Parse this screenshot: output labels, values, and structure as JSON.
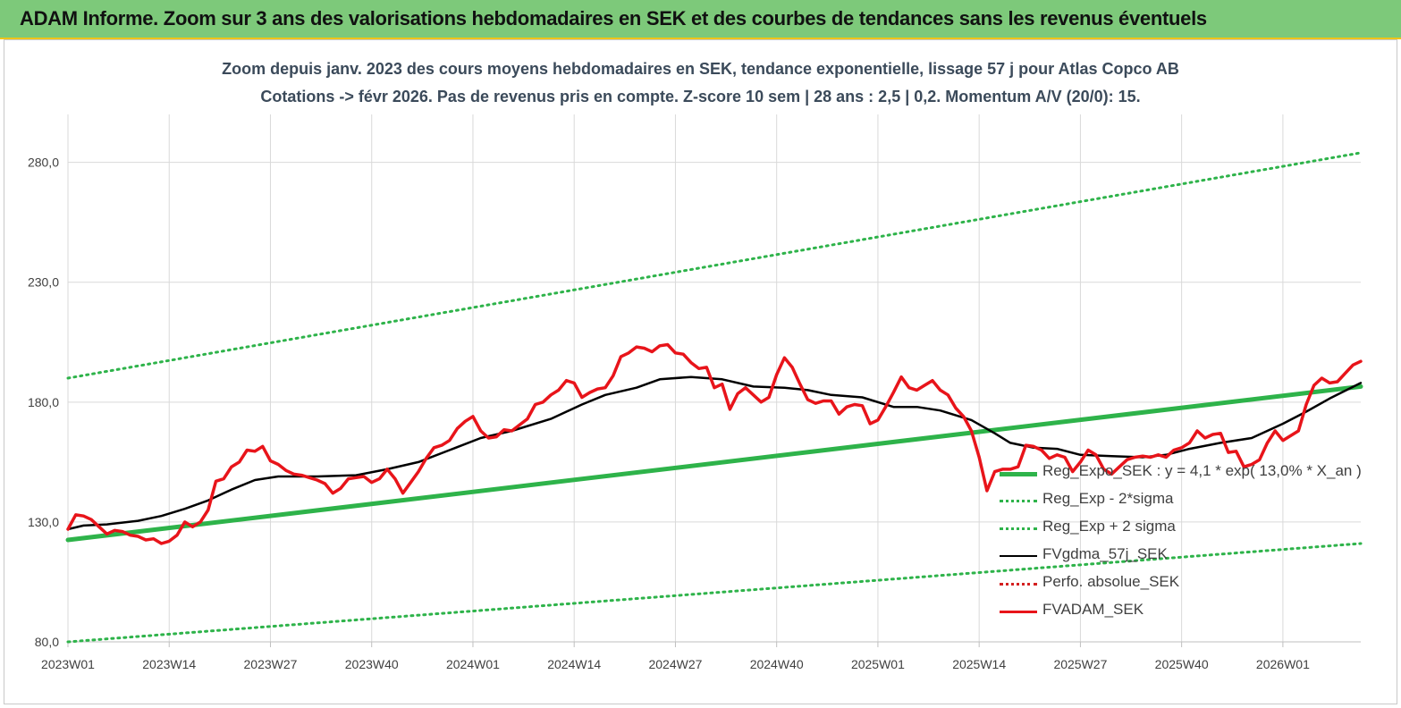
{
  "header": {
    "banner_title": "ADAM Informe. Zoom sur 3 ans des valorisations hebdomadaires en SEK et des courbes de tendances sans les revenus éventuels"
  },
  "chart_data": {
    "type": "line",
    "title": "Zoom depuis janv. 2023 des cours moyens hebdomadaires en SEK, tendance exponentielle, lissage 57 j pour Atlas Copco AB",
    "subtitle": "Cotations -> févr 2026.  Pas de revenus pris en compte. Z-score 10 sem  | 28 ans : 2,5  | 0,2. Momentum A/V (20/0): 15.",
    "xlabel": "",
    "ylabel": "",
    "ylim": [
      80,
      300
    ],
    "yticks": [
      80,
      130,
      180,
      230,
      280
    ],
    "ytick_labels": [
      "80,0",
      "130,0",
      "180,0",
      "230,0",
      "280,0"
    ],
    "xtick_labels": [
      "2023W01",
      "2023W14",
      "2023W27",
      "2023W40",
      "2024W01",
      "2024W14",
      "2024W27",
      "2024W40",
      "2025W01",
      "2025W14",
      "2025W27",
      "2025W40",
      "2026W01"
    ],
    "xtick_index": [
      0,
      13,
      26,
      39,
      52,
      65,
      78,
      91,
      104,
      117,
      130,
      143,
      156
    ],
    "n_weeks": 166,
    "grid": "horizontal and vertical",
    "legend_placement": "bottom-right",
    "series": [
      {
        "name": "Reg_Expo_SEK : y = 4,1 * exp( 13,0% *  X_an )",
        "style": "solid-thick",
        "color": "#2eb34a",
        "points": [
          [
            0,
            122.5
          ],
          [
            166,
            186.5
          ]
        ]
      },
      {
        "name": "Reg_Exp - 2*sigma",
        "style": "dotted",
        "color": "#2eb34a",
        "points": [
          [
            0,
            80
          ],
          [
            166,
            121
          ]
        ]
      },
      {
        "name": "Reg_Exp + 2 sigma",
        "style": "dotted",
        "color": "#2eb34a",
        "points": [
          [
            0,
            190
          ],
          [
            166,
            284
          ]
        ]
      },
      {
        "name": "FVgdma_57j_SEK",
        "style": "solid",
        "color": "#000000",
        "points": [
          [
            0,
            127
          ],
          [
            2,
            128.5
          ],
          [
            5,
            129
          ],
          [
            9,
            130.5
          ],
          [
            12,
            132.5
          ],
          [
            15,
            135.5
          ],
          [
            18,
            139
          ],
          [
            21,
            143.5
          ],
          [
            24,
            147.5
          ],
          [
            27,
            149
          ],
          [
            32,
            149
          ],
          [
            37,
            149.5
          ],
          [
            41,
            152
          ],
          [
            45,
            155
          ],
          [
            49,
            160
          ],
          [
            53,
            165
          ],
          [
            57,
            168
          ],
          [
            62,
            173
          ],
          [
            66,
            179
          ],
          [
            69,
            183
          ],
          [
            73,
            186
          ],
          [
            76,
            189.5
          ],
          [
            80,
            190.5
          ],
          [
            84,
            189.5
          ],
          [
            88,
            186.5
          ],
          [
            92,
            186
          ],
          [
            95,
            185
          ],
          [
            98,
            183
          ],
          [
            102,
            182
          ],
          [
            106,
            178
          ],
          [
            109,
            178
          ],
          [
            112,
            176.5
          ],
          [
            116,
            172.5
          ],
          [
            119,
            167
          ],
          [
            121,
            163
          ],
          [
            124,
            161
          ],
          [
            127,
            160.5
          ],
          [
            130,
            158
          ],
          [
            134,
            157.5
          ],
          [
            138,
            157
          ],
          [
            141,
            158
          ],
          [
            144,
            160.5
          ],
          [
            148,
            163
          ],
          [
            152,
            165
          ],
          [
            156,
            171
          ],
          [
            159,
            176
          ],
          [
            162,
            181.5
          ],
          [
            166,
            188
          ]
        ]
      },
      {
        "name": "Perfo. absolue_SEK",
        "style": "dotted",
        "color": "#d42020",
        "points": []
      },
      {
        "name": "FVADAM_SEK",
        "style": "solid-thick",
        "color": "#e8141a",
        "points": [
          [
            0,
            127
          ],
          [
            1,
            133
          ],
          [
            2,
            132.5
          ],
          [
            3,
            131
          ],
          [
            4,
            128
          ],
          [
            5,
            125
          ],
          [
            6,
            126.5
          ],
          [
            7,
            126
          ],
          [
            8,
            124.5
          ],
          [
            9,
            124
          ],
          [
            10,
            122.5
          ],
          [
            11,
            123
          ],
          [
            12,
            121
          ],
          [
            13,
            122
          ],
          [
            14,
            124.5
          ],
          [
            15,
            130
          ],
          [
            16,
            128
          ],
          [
            17,
            130
          ],
          [
            18,
            135
          ],
          [
            19,
            147
          ],
          [
            20,
            148
          ],
          [
            21,
            153
          ],
          [
            22,
            155
          ],
          [
            23,
            160
          ],
          [
            24,
            159.5
          ],
          [
            25,
            161.5
          ],
          [
            26,
            155.5
          ],
          [
            27,
            154
          ],
          [
            28,
            151.5
          ],
          [
            29,
            150
          ],
          [
            30,
            149.5
          ],
          [
            31,
            148.5
          ],
          [
            32,
            147.5
          ],
          [
            33,
            146
          ],
          [
            34,
            142
          ],
          [
            35,
            144
          ],
          [
            36,
            148
          ],
          [
            37,
            148.5
          ],
          [
            38,
            149
          ],
          [
            39,
            146.5
          ],
          [
            40,
            148
          ],
          [
            41,
            152
          ],
          [
            42,
            148
          ],
          [
            43,
            142
          ],
          [
            44,
            146.5
          ],
          [
            45,
            151
          ],
          [
            46,
            156.5
          ],
          [
            47,
            161
          ],
          [
            48,
            162
          ],
          [
            49,
            164
          ],
          [
            50,
            169
          ],
          [
            51,
            172
          ],
          [
            52,
            174
          ],
          [
            53,
            168
          ],
          [
            54,
            165
          ],
          [
            55,
            165.5
          ],
          [
            56,
            168.5
          ],
          [
            57,
            168
          ],
          [
            58,
            170.5
          ],
          [
            59,
            173
          ],
          [
            60,
            179
          ],
          [
            61,
            180
          ],
          [
            62,
            183
          ],
          [
            63,
            185
          ],
          [
            64,
            189
          ],
          [
            65,
            188
          ],
          [
            66,
            182
          ],
          [
            67,
            184
          ],
          [
            68,
            185.5
          ],
          [
            69,
            186
          ],
          [
            70,
            191
          ],
          [
            71,
            199
          ],
          [
            72,
            200.5
          ],
          [
            73,
            203
          ],
          [
            74,
            202.5
          ],
          [
            75,
            201
          ],
          [
            76,
            203.5
          ],
          [
            77,
            204
          ],
          [
            78,
            200.5
          ],
          [
            79,
            200
          ],
          [
            80,
            196.5
          ],
          [
            81,
            194
          ],
          [
            82,
            194.5
          ],
          [
            83,
            186
          ],
          [
            84,
            187.5
          ],
          [
            85,
            177
          ],
          [
            86,
            183.5
          ],
          [
            87,
            186
          ],
          [
            88,
            183
          ],
          [
            89,
            180
          ],
          [
            90,
            182
          ],
          [
            91,
            191.5
          ],
          [
            92,
            198.5
          ],
          [
            93,
            194.5
          ],
          [
            94,
            187.5
          ],
          [
            95,
            181
          ],
          [
            96,
            179.5
          ],
          [
            97,
            180.5
          ],
          [
            98,
            180.5
          ],
          [
            99,
            175
          ],
          [
            100,
            178
          ],
          [
            101,
            179
          ],
          [
            102,
            178.5
          ],
          [
            103,
            171
          ],
          [
            104,
            172.5
          ],
          [
            105,
            178
          ],
          [
            106,
            184
          ],
          [
            107,
            190.5
          ],
          [
            108,
            186
          ],
          [
            109,
            185
          ],
          [
            110,
            187
          ],
          [
            111,
            189
          ],
          [
            112,
            185
          ],
          [
            113,
            183
          ],
          [
            114,
            177.5
          ],
          [
            115,
            174
          ],
          [
            116,
            168
          ],
          [
            117,
            157
          ],
          [
            118,
            143
          ],
          [
            119,
            151
          ],
          [
            120,
            152
          ],
          [
            121,
            152
          ],
          [
            122,
            153
          ],
          [
            123,
            162
          ],
          [
            124,
            161.5
          ],
          [
            125,
            160
          ],
          [
            126,
            156.5
          ],
          [
            127,
            158
          ],
          [
            128,
            157
          ],
          [
            129,
            151
          ],
          [
            130,
            155
          ],
          [
            131,
            160
          ],
          [
            132,
            158
          ],
          [
            133,
            152
          ],
          [
            134,
            150
          ],
          [
            135,
            153
          ],
          [
            136,
            156
          ],
          [
            137,
            157
          ],
          [
            138,
            157.5
          ],
          [
            139,
            157
          ],
          [
            140,
            158
          ],
          [
            141,
            157
          ],
          [
            142,
            160
          ],
          [
            143,
            161
          ],
          [
            144,
            163
          ],
          [
            145,
            168
          ],
          [
            146,
            165
          ],
          [
            147,
            166.5
          ],
          [
            148,
            167
          ],
          [
            149,
            159
          ],
          [
            150,
            159.5
          ],
          [
            151,
            153
          ],
          [
            152,
            154
          ],
          [
            153,
            156
          ],
          [
            154,
            163
          ],
          [
            155,
            168
          ],
          [
            156,
            164
          ],
          [
            157,
            166
          ],
          [
            158,
            168
          ],
          [
            159,
            179
          ],
          [
            160,
            187
          ],
          [
            161,
            190
          ],
          [
            162,
            188
          ],
          [
            163,
            188.5
          ],
          [
            164,
            192
          ],
          [
            165,
            195.5
          ],
          [
            166,
            197
          ]
        ]
      }
    ]
  }
}
